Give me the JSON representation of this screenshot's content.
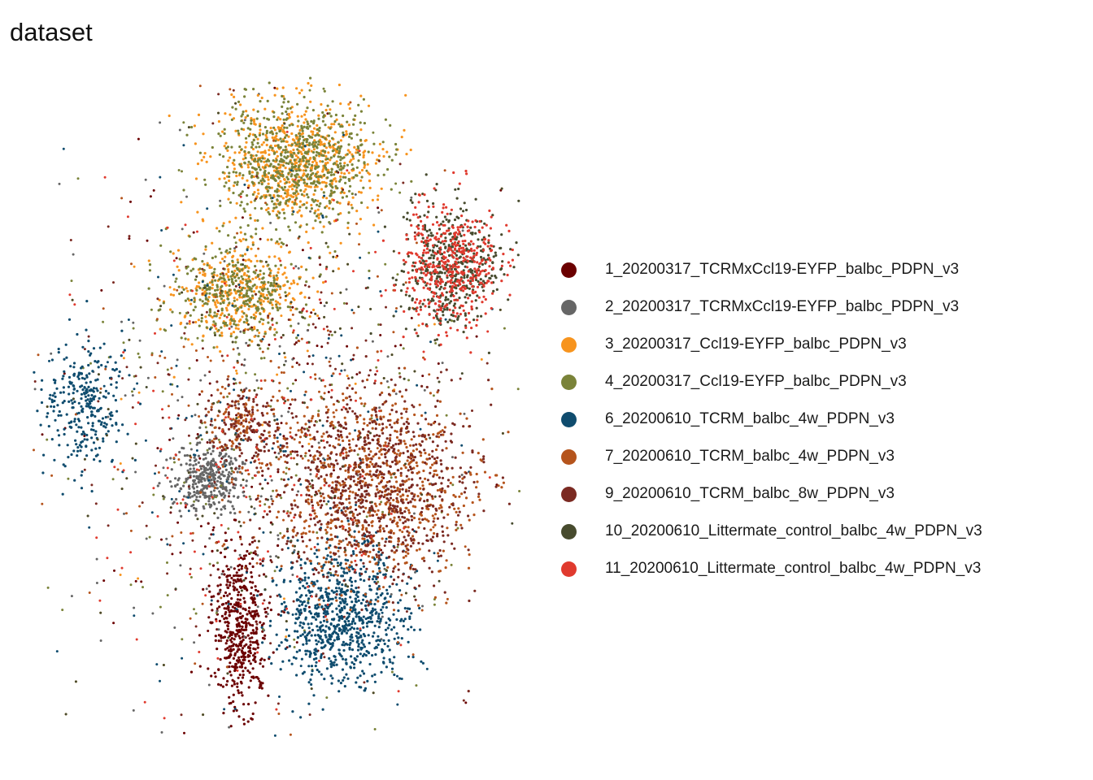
{
  "chart_data": {
    "type": "scatter",
    "title": "dataset",
    "xlabel": "",
    "ylabel": "",
    "axes_visible": false,
    "grid": false,
    "legend_position": "right",
    "series": [
      {
        "name": "1_20200317_TCRMxCcl19-EYFP_balbc_PDPN_v3",
        "color": "#6B0000",
        "region": "lower-left-tail"
      },
      {
        "name": "2_20200317_TCRMxCcl19-EYFP_balbc_PDPN_v3",
        "color": "#666666",
        "region": "middle-left"
      },
      {
        "name": "3_20200317_Ccl19-EYFP_balbc_PDPN_v3",
        "color": "#F7941E",
        "region": "top-cluster"
      },
      {
        "name": "4_20200317_Ccl19-EYFP_balbc_PDPN_v3",
        "color": "#7A8339",
        "region": "top-cluster"
      },
      {
        "name": "6_20200610_TCRM_balbc_4w_PDPN_v3",
        "color": "#0F4C6E",
        "region": "lower-cluster"
      },
      {
        "name": "7_20200610_TCRM_balbc_4w_PDPN_v3",
        "color": "#B5541C",
        "region": "middle-cluster"
      },
      {
        "name": "9_20200610_TCRM_balbc_8w_PDPN_v3",
        "color": "#7B2A22",
        "region": "middle-cluster"
      },
      {
        "name": "10_20200610_Littermate_control_balbc_4w_PDPN_v3",
        "color": "#474B2E",
        "region": "right-cluster"
      },
      {
        "name": "11_20200610_Littermate_control_balbc_4w_PDPN_v3",
        "color": "#E03A2E",
        "region": "right-cluster"
      }
    ]
  }
}
